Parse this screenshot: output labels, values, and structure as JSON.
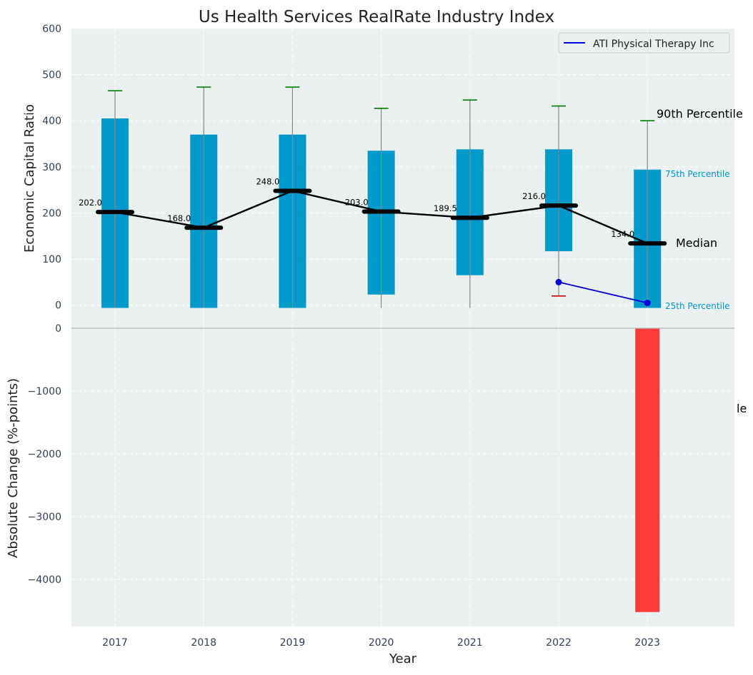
{
  "chart_data": {
    "type": "bar",
    "title": "Us Health Services RealRate Industry Index",
    "xlabel": "Year",
    "categories": [
      "2017",
      "2018",
      "2019",
      "2020",
      "2021",
      "2022",
      "2023"
    ],
    "top_panel": {
      "ylabel": "Economic Capital Ratio",
      "ylim": [
        -50,
        600
      ],
      "yticks": [
        "0",
        "100",
        "200",
        "300",
        "400",
        "500",
        "600"
      ],
      "percentile_10": [
        -6,
        -6,
        -6,
        -6,
        -6,
        20,
        -6
      ],
      "percentile_25": [
        -46,
        -46,
        -8,
        23,
        65,
        117,
        -11
      ],
      "median": [
        202.0,
        168.0,
        248.0,
        203.0,
        189.5,
        216.0,
        134.0
      ],
      "median_labels": [
        "202.0",
        "168.0",
        "248.0",
        "203.0",
        "189.5",
        "216.0",
        "134.0"
      ],
      "percentile_75": [
        405,
        370,
        370,
        335,
        338,
        338,
        294
      ],
      "percentile_90": [
        465,
        473,
        473,
        427,
        445,
        432,
        400
      ],
      "company_series": {
        "name": "ATI Physical Therapy Inc",
        "x": [
          "2022",
          "2023"
        ],
        "values": [
          50,
          5
        ]
      },
      "annotations": {
        "p90": "90th Percentile",
        "p75": "75th Percentile",
        "median": "Median",
        "p25": "25th Percentile"
      },
      "legend_position": "top-right",
      "grid": true
    },
    "bottom_panel": {
      "ylabel": "Absolute Change (%-points)",
      "ylim": [
        -4750,
        0
      ],
      "yticks": [
        "0",
        "−1000",
        "−2000",
        "−3000",
        "−4000"
      ],
      "values": [
        0,
        0,
        0,
        0,
        0,
        0,
        -4520
      ],
      "cut_off_label": "le",
      "grid": true
    },
    "colors": {
      "box": "#0099cc",
      "median": "#000000",
      "whisker_top": "#008000",
      "whisker_bottom": "#cc0000",
      "company_line": "#0000dd",
      "negative_bar": "#ff3b3b",
      "panel_bg": "#eaeff0",
      "grid": "#ffffff",
      "tick_text": "#2e4057",
      "p75_p25_text": "#0099cc"
    }
  }
}
